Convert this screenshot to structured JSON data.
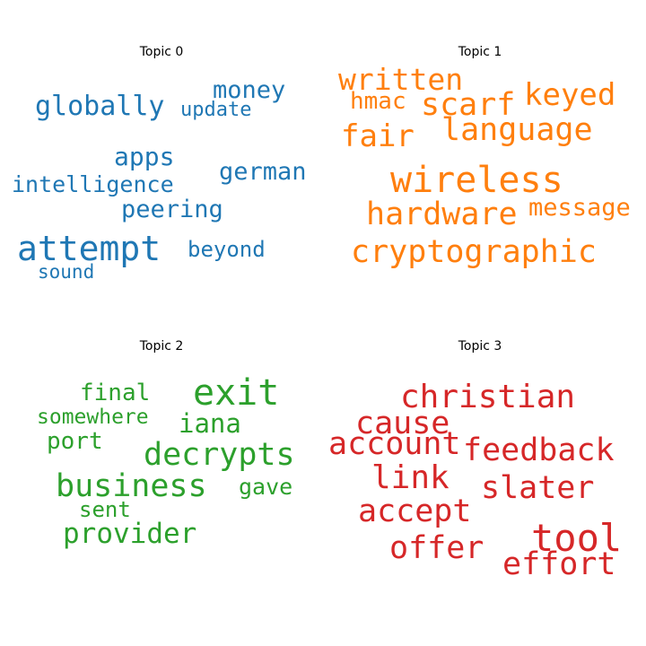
{
  "chart_data": {
    "type": "wordcloud",
    "panels": [
      {
        "title": "Topic 0",
        "color": "#1f77b4",
        "words": [
          "money",
          "globally",
          "update",
          "apps",
          "german",
          "intelligence",
          "peering",
          "attempt",
          "beyond",
          "sound"
        ]
      },
      {
        "title": "Topic 1",
        "color": "#ff7f0e",
        "words": [
          "written",
          "hmac",
          "scarf",
          "keyed",
          "language",
          "fair",
          "wireless",
          "hardware",
          "message",
          "cryptographic"
        ]
      },
      {
        "title": "Topic 2",
        "color": "#2ca02c",
        "words": [
          "final",
          "exit",
          "somewhere",
          "iana",
          "port",
          "decrypts",
          "business",
          "gave",
          "sent",
          "provider"
        ]
      },
      {
        "title": "Topic 3",
        "color": "#d62728",
        "words": [
          "christian",
          "cause",
          "account",
          "feedback",
          "link",
          "slater",
          "accept",
          "tool",
          "offer",
          "effort"
        ]
      }
    ]
  }
}
